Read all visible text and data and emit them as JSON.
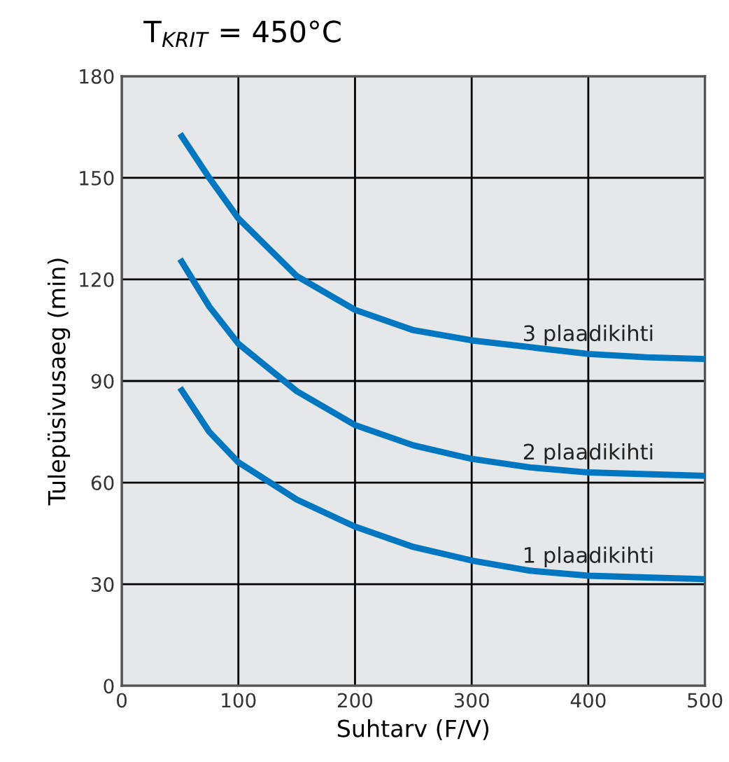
{
  "chart_data": {
    "type": "line",
    "title": "T$_{KRIT}$ = 450°C",
    "xlabel": "Suhtarv (F/V)",
    "ylabel": "Tulepüsivusaeg (min)",
    "x": [
      50,
      75,
      100,
      150,
      200,
      250,
      300,
      350,
      400,
      450,
      500
    ],
    "series": [
      {
        "name": "3 plaadikihti",
        "color": "#0077c0",
        "values": [
          163,
          150,
          138,
          121,
          111,
          105,
          102,
          100,
          98,
          97,
          96.5
        ]
      },
      {
        "name": "2 plaadikihti",
        "color": "#0077c0",
        "values": [
          126,
          112,
          101,
          87,
          77,
          71,
          67,
          64.5,
          63,
          62.5,
          62
        ]
      },
      {
        "name": "1 plaadikihti",
        "color": "#0077c0",
        "values": [
          88,
          75,
          66,
          55,
          47,
          41,
          37,
          34,
          32.5,
          32,
          31.5
        ]
      }
    ],
    "xlim": [
      0,
      500
    ],
    "ylim": [
      0,
      180
    ],
    "xticks": [
      0,
      100,
      200,
      300,
      400,
      500
    ],
    "yticks": [
      0,
      30,
      60,
      90,
      120,
      150,
      180
    ],
    "grid": true,
    "legend": false,
    "marker": "none",
    "line_style": "solid"
  }
}
